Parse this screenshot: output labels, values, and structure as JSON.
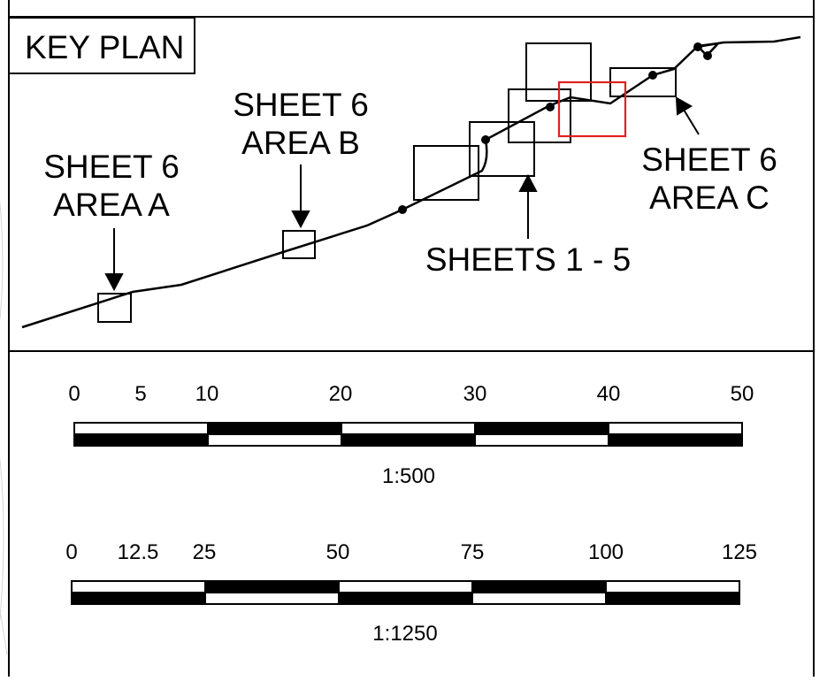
{
  "key_plan": {
    "title": "KEY PLAN",
    "labels": {
      "sheet6_area_a": [
        "SHEET 6",
        "AREA A"
      ],
      "sheet6_area_b": [
        "SHEET 6",
        "AREA B"
      ],
      "sheet6_area_c": [
        "SHEET 6",
        "AREA C"
      ],
      "sheets_1_5": "SHEETS 1 - 5"
    },
    "highlight_color": "#e02020"
  },
  "scales": [
    {
      "ratio": "1:500",
      "ticks": [
        "0",
        "5",
        "10",
        "20",
        "30",
        "40",
        "50"
      ]
    },
    {
      "ratio": "1:1250",
      "ticks": [
        "0",
        "12.5",
        "25",
        "50",
        "75",
        "100",
        "125"
      ]
    }
  ]
}
